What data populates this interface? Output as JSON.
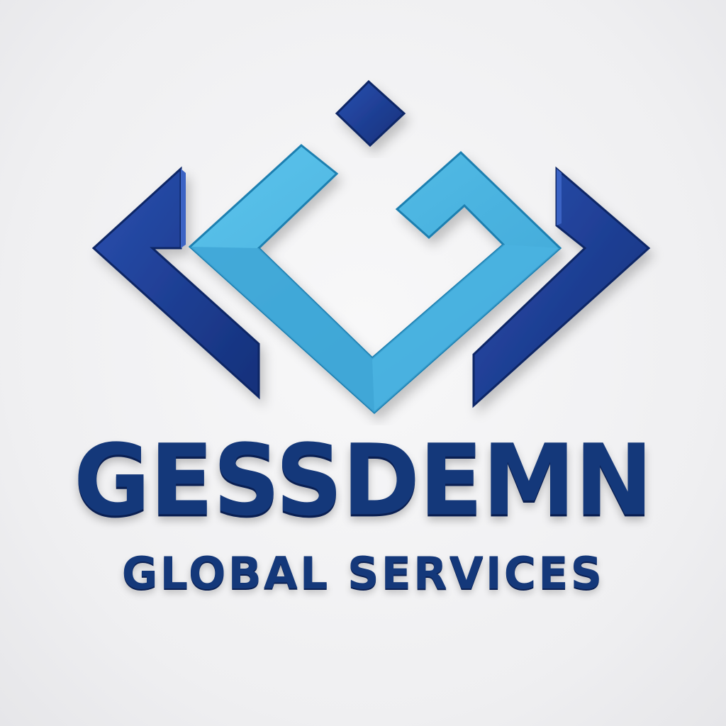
{
  "logo": {
    "brand_name": "GESSDEMN",
    "tagline": "GLOBAL SERVICES"
  },
  "colors": {
    "navy": "#1a3a8a",
    "navy_dark": "#0f2766",
    "cyan": "#4fb6e0",
    "cyan_dark": "#2a8fbf",
    "text": "#14387a",
    "text_shadow": "#0a1f52",
    "background": "#f2f2f4"
  },
  "icons": [
    "left-chevron-icon",
    "right-chevron-icon",
    "center-g-mark-icon",
    "square-dot-icon"
  ]
}
